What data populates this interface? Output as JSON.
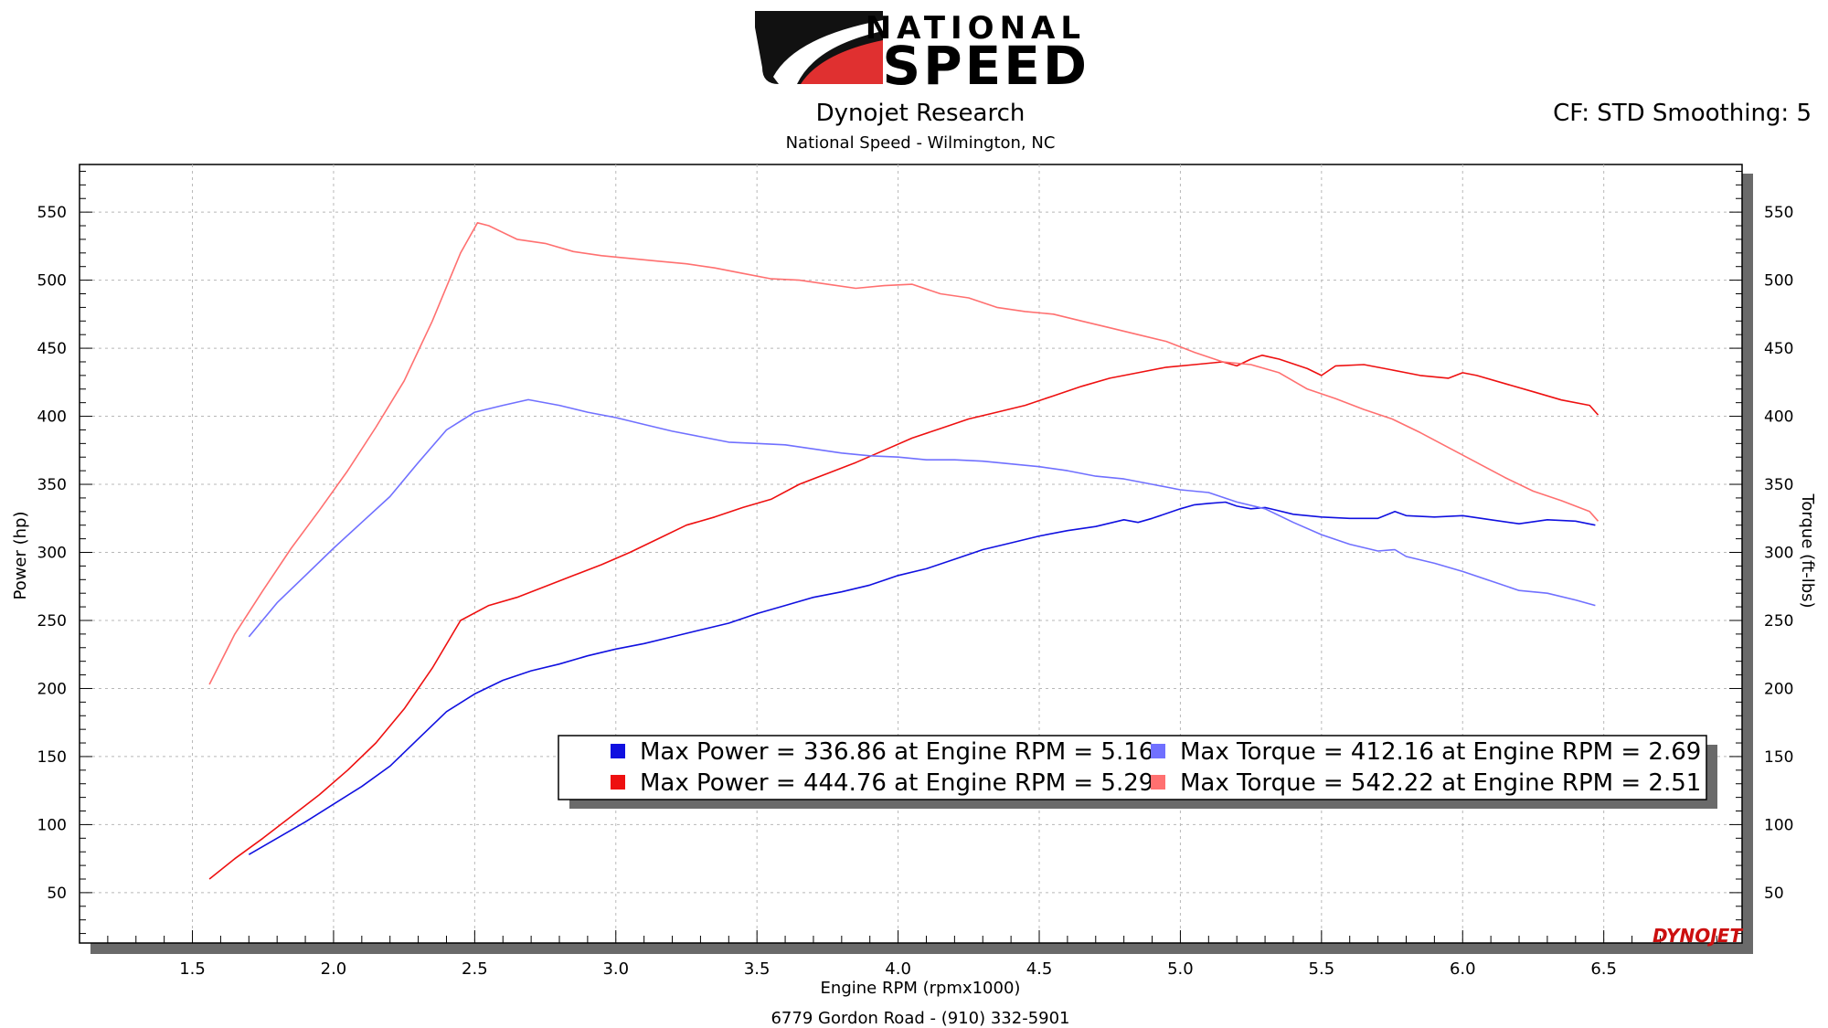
{
  "header": {
    "logo_word_1": "NATIONAL",
    "logo_word_2": "SPEED",
    "title": "Dynojet Research",
    "subtitle": "National Speed - Wilmington, NC",
    "correction_info": "CF: STD Smoothing: 5",
    "footer": "6779 Gordon Road - (910) 332-5901",
    "watermark": "DYNOJET"
  },
  "colors": {
    "power_run1": "#1010e0",
    "power_run2": "#ee1010",
    "torque_run1": "#7070ff",
    "torque_run2": "#ff7070"
  },
  "chart_data": {
    "type": "line",
    "xlabel": "Engine RPM (rpmx1000)",
    "ylabel_left": "Power (hp)",
    "ylabel_right": "Torque (ft-lbs)",
    "xlim": [
      1.1,
      6.99
    ],
    "ylim": [
      13,
      585
    ],
    "x_ticks": [
      1.5,
      2.0,
      2.5,
      3.0,
      3.5,
      4.0,
      4.5,
      5.0,
      5.5,
      6.0,
      6.5
    ],
    "y_ticks": [
      50,
      100,
      150,
      200,
      250,
      300,
      350,
      400,
      450,
      500,
      550
    ],
    "grid": true,
    "legend_position": "bottom-right",
    "legend": [
      "Max Power = 336.86 at Engine RPM = 5.16",
      "Max Torque = 412.16 at Engine RPM = 2.69",
      "Max Power = 444.76 at Engine RPM = 5.29",
      "Max Torque = 542.22 at Engine RPM = 2.51"
    ],
    "series": [
      {
        "axis": "left",
        "x": [
          1.7,
          1.8,
          1.9,
          2.0,
          2.1,
          2.2,
          2.3,
          2.4,
          2.5,
          2.6,
          2.7,
          2.8,
          2.9,
          3.0,
          3.1,
          3.2,
          3.3,
          3.4,
          3.5,
          3.6,
          3.7,
          3.8,
          3.9,
          4.0,
          4.1,
          4.2,
          4.3,
          4.4,
          4.5,
          4.6,
          4.7,
          4.8,
          4.85,
          4.9,
          5.0,
          5.05,
          5.1,
          5.16,
          5.2,
          5.25,
          5.3,
          5.4,
          5.5,
          5.6,
          5.7,
          5.76,
          5.8,
          5.9,
          6.0,
          6.1,
          6.2,
          6.3,
          6.4,
          6.47
        ],
        "values": [
          78,
          90,
          102,
          115,
          128,
          143,
          163,
          183,
          196,
          206,
          213,
          218,
          224,
          229,
          233,
          238,
          243,
          248,
          255,
          261,
          267,
          271,
          276,
          283,
          288,
          295,
          302,
          307,
          312,
          316,
          319,
          324,
          322,
          325,
          332,
          335,
          336,
          336.9,
          334,
          332,
          333,
          328,
          326,
          325,
          325,
          330,
          327,
          326,
          327,
          324,
          321,
          324,
          323,
          320
        ]
      },
      {
        "axis": "left",
        "x": [
          1.56,
          1.65,
          1.75,
          1.85,
          1.95,
          2.05,
          2.15,
          2.25,
          2.35,
          2.45,
          2.55,
          2.65,
          2.75,
          2.85,
          2.95,
          3.05,
          3.15,
          3.25,
          3.35,
          3.45,
          3.55,
          3.65,
          3.75,
          3.85,
          3.95,
          4.05,
          4.15,
          4.25,
          4.35,
          4.45,
          4.55,
          4.65,
          4.75,
          4.85,
          4.95,
          5.05,
          5.15,
          5.2,
          5.25,
          5.29,
          5.35,
          5.45,
          5.5,
          5.55,
          5.65,
          5.75,
          5.85,
          5.95,
          6.0,
          6.05,
          6.15,
          6.25,
          6.35,
          6.45,
          6.48
        ],
        "values": [
          60,
          75,
          90,
          106,
          122,
          140,
          160,
          185,
          215,
          250,
          261,
          267,
          275,
          283,
          291,
          300,
          310,
          320,
          326,
          333,
          339,
          350,
          358,
          366,
          375,
          384,
          391,
          398,
          403,
          408,
          415,
          422,
          428,
          432,
          436,
          438,
          440,
          437,
          442,
          444.8,
          442,
          435,
          430,
          437,
          438,
          434,
          430,
          428,
          432,
          430,
          424,
          418,
          412,
          408,
          401
        ]
      },
      {
        "axis": "right",
        "x": [
          1.7,
          1.8,
          1.9,
          2.0,
          2.1,
          2.2,
          2.3,
          2.4,
          2.5,
          2.6,
          2.69,
          2.8,
          2.9,
          3.0,
          3.1,
          3.2,
          3.3,
          3.4,
          3.5,
          3.6,
          3.7,
          3.8,
          3.9,
          4.0,
          4.1,
          4.2,
          4.3,
          4.4,
          4.5,
          4.6,
          4.7,
          4.8,
          4.9,
          5.0,
          5.1,
          5.2,
          5.3,
          5.4,
          5.5,
          5.6,
          5.7,
          5.76,
          5.8,
          5.9,
          6.0,
          6.1,
          6.2,
          6.3,
          6.4,
          6.47
        ],
        "values": [
          238,
          263,
          283,
          303,
          322,
          341,
          366,
          390,
          403,
          408,
          412.2,
          408,
          403,
          399,
          394,
          389,
          385,
          381,
          380,
          379,
          376,
          373,
          371,
          370,
          368,
          368,
          367,
          365,
          363,
          360,
          356,
          354,
          350,
          346,
          344,
          337,
          332,
          322,
          313,
          306,
          301,
          302,
          297,
          292,
          286,
          279,
          272,
          270,
          265,
          261
        ]
      },
      {
        "axis": "right",
        "x": [
          1.56,
          1.65,
          1.75,
          1.85,
          1.95,
          2.05,
          2.15,
          2.25,
          2.35,
          2.45,
          2.51,
          2.55,
          2.65,
          2.75,
          2.85,
          2.95,
          3.05,
          3.15,
          3.25,
          3.35,
          3.45,
          3.55,
          3.65,
          3.75,
          3.85,
          3.95,
          4.05,
          4.15,
          4.25,
          4.35,
          4.45,
          4.55,
          4.65,
          4.75,
          4.85,
          4.95,
          5.05,
          5.15,
          5.25,
          5.35,
          5.45,
          5.55,
          5.65,
          5.75,
          5.85,
          5.95,
          6.05,
          6.15,
          6.25,
          6.35,
          6.45,
          6.48
        ],
        "values": [
          203,
          240,
          272,
          303,
          331,
          360,
          392,
          426,
          470,
          520,
          542.2,
          540,
          530,
          527,
          521,
          518,
          516,
          514,
          512,
          509,
          505,
          501,
          500,
          497,
          494,
          496,
          497,
          490,
          487,
          480,
          477,
          475,
          470,
          465,
          460,
          455,
          447,
          440,
          438,
          432,
          420,
          413,
          405,
          398,
          388,
          377,
          366,
          355,
          345,
          338,
          330,
          323
        ]
      }
    ]
  }
}
